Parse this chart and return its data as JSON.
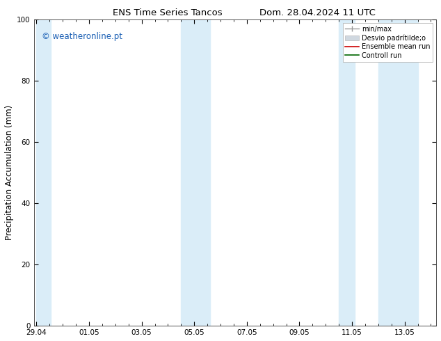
{
  "title_left": "ENS Time Series Tancos",
  "title_right": "Dom. 28.04.2024 11 UTC",
  "ylabel": "Precipitation Accumulation (mm)",
  "ylim": [
    0,
    100
  ],
  "yticks": [
    0,
    20,
    40,
    60,
    80,
    100
  ],
  "xtick_labels": [
    "29.04",
    "01.05",
    "03.05",
    "05.05",
    "07.05",
    "09.05",
    "11.05",
    "13.05"
  ],
  "xtick_positions": [
    0,
    2,
    4,
    6,
    8,
    10,
    12,
    14
  ],
  "xlim": [
    -0.1,
    15.2
  ],
  "watermark": "© weatheronline.pt",
  "watermark_color": "#1a5fb4",
  "background_color": "#ffffff",
  "band_color": "#daedf8",
  "shaded_regions": [
    [
      0.0,
      0.5
    ],
    [
      5.5,
      6.0
    ],
    [
      6.0,
      6.5
    ],
    [
      11.5,
      12.0
    ],
    [
      13.0,
      13.5
    ]
  ],
  "title_fontsize": 9.5,
  "tick_fontsize": 7.5,
  "ylabel_fontsize": 8.5,
  "watermark_fontsize": 8.5,
  "legend_fontsize": 7
}
